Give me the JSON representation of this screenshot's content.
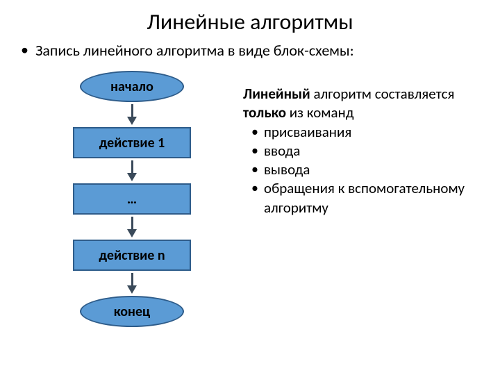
{
  "title": "Линейные алгоритмы",
  "subtitle": "Запись линейного алгоритма в виде блок-схемы:",
  "flowchart": {
    "nodes": [
      {
        "label": "начало",
        "shape": "terminal"
      },
      {
        "label": "действие 1",
        "shape": "process"
      },
      {
        "label": "…",
        "shape": "process"
      },
      {
        "label": "действие n",
        "shape": "process"
      },
      {
        "label": "конец",
        "shape": "terminal"
      }
    ],
    "fill_color": "#5b9bd5",
    "border_color": "#2e5c8a",
    "border_width": 2,
    "text_color": "#000000",
    "arrow_color": "#3a4a5a"
  },
  "description": {
    "intro_prefix": "Линейный",
    "intro_middle": " алгоритм составляется ",
    "intro_bold": "только",
    "intro_suffix": " из команд",
    "items": [
      "присваивания",
      "ввода",
      "вывода",
      "обращения к вспомогательному алгоритму"
    ]
  },
  "colors": {
    "background": "#ffffff",
    "text": "#000000"
  }
}
